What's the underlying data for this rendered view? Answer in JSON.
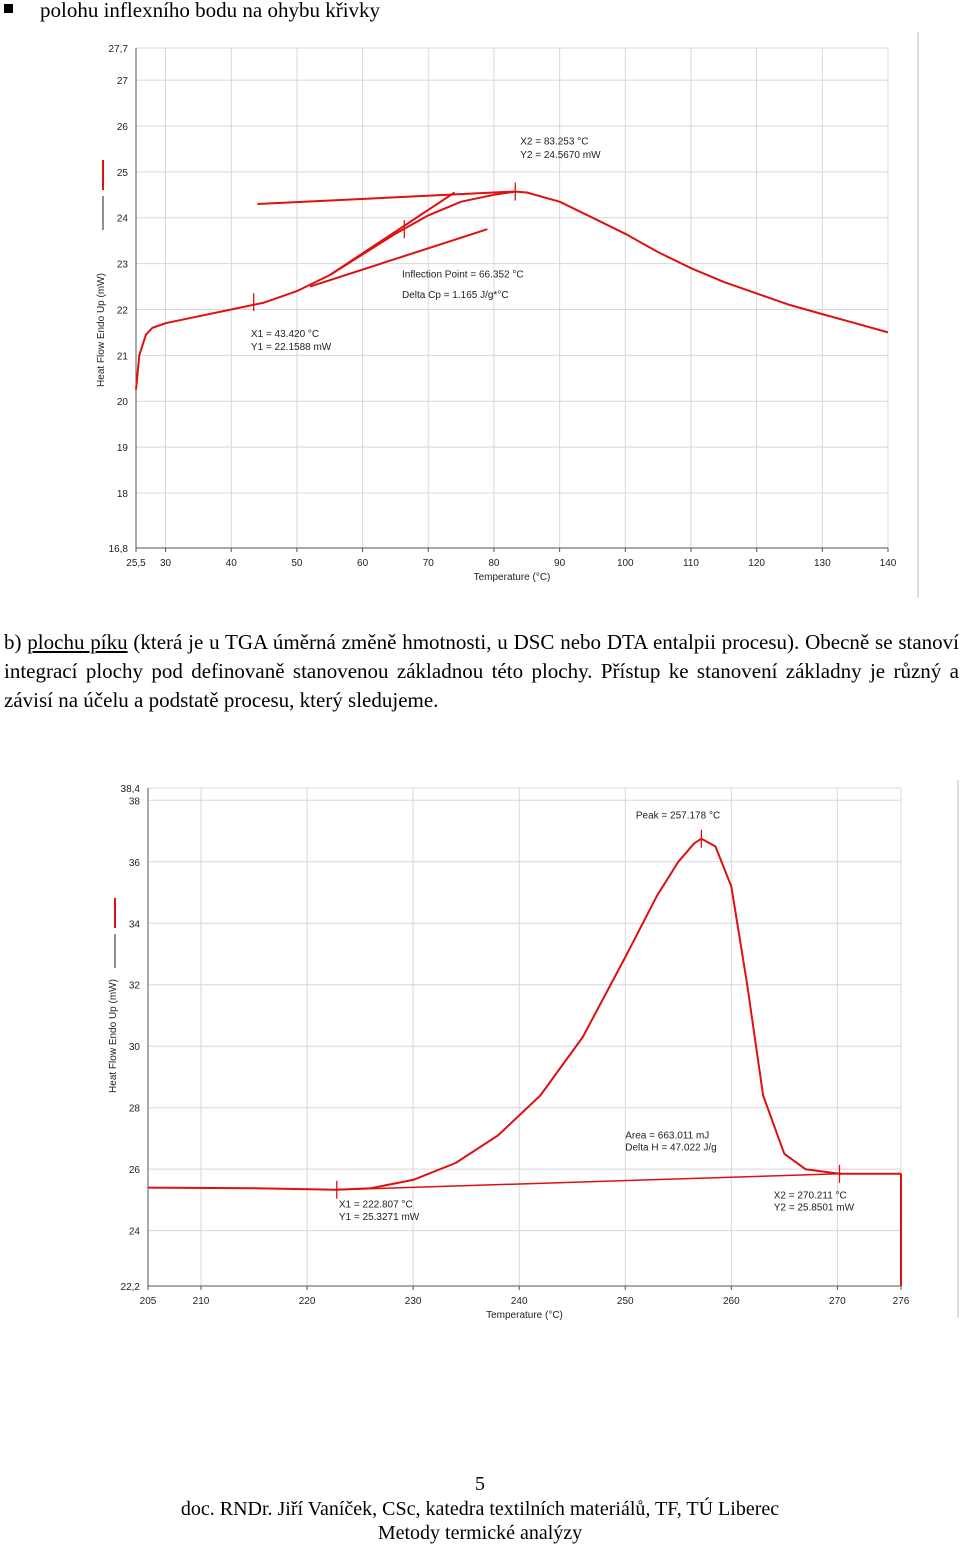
{
  "bullet_text": "polohu inflexního bodu na ohybu křivky",
  "paragraph": {
    "prefix": "b) ",
    "underlined": "plochu píku",
    "rest": " (která je u TGA úměrná změně hmotnosti, u DSC nebo DTA entalpii procesu). Obecně se stanoví integrací plochy pod definovaně stanovenou základnou této plochy. Přístup ke stanovení základny je různý a závisí na účelu a podstatě procesu, který sledujeme."
  },
  "chart_data": [
    {
      "type": "line",
      "xlabel": "Temperature (°C)",
      "ylabel": "Heat Flow Endo Up (mW)",
      "xlim": [
        25.5,
        140
      ],
      "ylim": [
        16.8,
        27.7
      ],
      "x_ticks": [
        "25,5",
        "30",
        "40",
        "50",
        "60",
        "70",
        "80",
        "90",
        "100",
        "110",
        "120",
        "130",
        "140"
      ],
      "y_ticks": [
        "16,8",
        "18",
        "19",
        "20",
        "21",
        "22",
        "23",
        "24",
        "25",
        "26",
        "27",
        "27,7"
      ],
      "color": "#dd1111",
      "curve": {
        "x": [
          25.5,
          26,
          27,
          28,
          29,
          30,
          35,
          40,
          45,
          50,
          55,
          60,
          65,
          70,
          75,
          80,
          83.25,
          85,
          90,
          95,
          100,
          105,
          110,
          115,
          120,
          125,
          130,
          135,
          140
        ],
        "y": [
          20.25,
          21.0,
          21.45,
          21.6,
          21.65,
          21.7,
          21.85,
          22.0,
          22.15,
          22.4,
          22.75,
          23.2,
          23.65,
          24.05,
          24.35,
          24.5,
          24.57,
          24.55,
          24.35,
          24.0,
          23.65,
          23.25,
          22.9,
          22.6,
          22.35,
          22.1,
          21.9,
          21.7,
          21.5
        ]
      },
      "tangents": [
        {
          "x": [
            44,
            83
          ],
          "y": [
            24.3,
            24.57
          ]
        },
        {
          "x": [
            52,
            79
          ],
          "y": [
            22.5,
            23.75
          ]
        },
        {
          "x": [
            55,
            74
          ],
          "y": [
            22.75,
            24.55
          ]
        }
      ],
      "markers": [
        {
          "x": 43.42,
          "y": 22.16
        },
        {
          "x": 66.35,
          "y": 23.75
        },
        {
          "x": 83.25,
          "y": 24.57
        }
      ],
      "annotations": [
        {
          "text": "X2 = 83.253 °C",
          "x": 84,
          "y": 25.6
        },
        {
          "text": "Y2 = 24.5670 mW",
          "x": 84,
          "y": 25.3
        },
        {
          "text": "Inflection Point = 66.352 °C",
          "x": 66,
          "y": 22.7
        },
        {
          "text": "Delta Cp = 1.165 J/g*°C",
          "x": 66,
          "y": 22.25
        },
        {
          "text": "X1 = 43.420 °C",
          "x": 43,
          "y": 21.4
        },
        {
          "text": "Y1 = 22.1588 mW",
          "x": 43,
          "y": 21.12
        }
      ]
    },
    {
      "type": "line",
      "xlabel": "Temperature (°C)",
      "ylabel": "Heat Flow Endo Up (mW)",
      "xlim": [
        205,
        276
      ],
      "ylim": [
        22.2,
        38.4
      ],
      "x_ticks": [
        "205",
        "210",
        "220",
        "230",
        "240",
        "250",
        "260",
        "270",
        "276"
      ],
      "y_ticks": [
        "22,2",
        "24",
        "26",
        "28",
        "30",
        "32",
        "34",
        "36",
        "38",
        "38,4"
      ],
      "color": "#dd1111",
      "curve": {
        "x": [
          205,
          215,
          222.8,
          226,
          230,
          234,
          238,
          242,
          246,
          250,
          253,
          255,
          256.5,
          257.18,
          258.5,
          260,
          261.5,
          263,
          265,
          267,
          270.2,
          276
        ],
        "y": [
          25.4,
          25.38,
          25.33,
          25.38,
          25.65,
          26.2,
          27.1,
          28.4,
          30.3,
          32.9,
          34.9,
          36.0,
          36.6,
          36.75,
          36.5,
          35.2,
          32.0,
          28.4,
          26.5,
          26.0,
          25.85,
          25.85
        ]
      },
      "baseline": {
        "x": [
          222.8,
          270.2
        ],
        "y": [
          25.33,
          25.85
        ]
      },
      "drop_end": {
        "x": 276,
        "y": 22.2
      },
      "markers": [
        {
          "x": 222.8,
          "y": 25.33
        },
        {
          "x": 257.18,
          "y": 36.75
        },
        {
          "x": 270.2,
          "y": 25.85
        }
      ],
      "annotations": [
        {
          "text": "Peak = 257.178 °C",
          "x": 251,
          "y": 37.4
        },
        {
          "text": "Area = 663.011 mJ",
          "x": 250,
          "y": 27.0
        },
        {
          "text": "Delta H = 47.022 J/g",
          "x": 250,
          "y": 26.6
        },
        {
          "text": "X1 = 222.807 °C",
          "x": 223,
          "y": 24.75
        },
        {
          "text": "Y1 = 25.3271 mW",
          "x": 223,
          "y": 24.35
        },
        {
          "text": "X2 = 270.211 °C",
          "x": 264,
          "y": 25.05
        },
        {
          "text": "Y2 = 25.8501 mW",
          "x": 264,
          "y": 24.65
        }
      ]
    }
  ],
  "footer": {
    "page_number": "5",
    "line1": "doc. RNDr. Jiří Vaníček, CSc, katedra textilních materiálů, TF, TÚ Liberec",
    "line2": "Metody termické analýzy"
  }
}
